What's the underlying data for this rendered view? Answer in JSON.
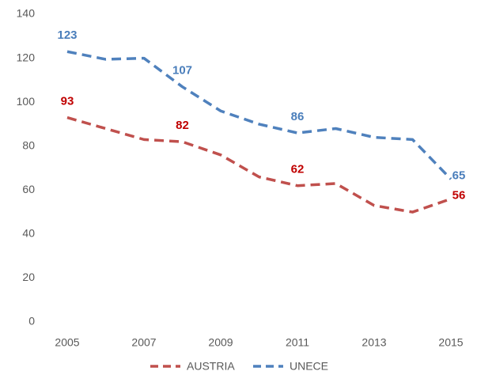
{
  "chart_data": {
    "type": "line",
    "x": [
      2005,
      2006,
      2007,
      2008,
      2009,
      2010,
      2011,
      2012,
      2013,
      2014,
      2015
    ],
    "xlim": [
      2005,
      2015
    ],
    "xticks": [
      2005,
      2007,
      2009,
      2011,
      2013,
      2015
    ],
    "ylim": [
      0,
      140
    ],
    "yticks": [
      0,
      20,
      40,
      60,
      80,
      100,
      120,
      140
    ],
    "grid": false,
    "legend": "bottom",
    "series": [
      {
        "name": "AUSTRIA",
        "color": "#c0504d",
        "label_color": "#c00000",
        "values": [
          93,
          88,
          83,
          82,
          76,
          66,
          62,
          63,
          53,
          50,
          56
        ],
        "value_labels": [
          "93",
          null,
          null,
          "82",
          null,
          null,
          "62",
          null,
          null,
          null,
          "56"
        ]
      },
      {
        "name": "UNECE",
        "color": "#4f81bd",
        "label_color": "#4a7ebb",
        "values": [
          123,
          119.5,
          120,
          107,
          96,
          90,
          86,
          88,
          84,
          83,
          65
        ],
        "value_labels": [
          "123",
          null,
          null,
          "107",
          null,
          null,
          "86",
          null,
          null,
          null,
          "65"
        ]
      }
    ]
  }
}
